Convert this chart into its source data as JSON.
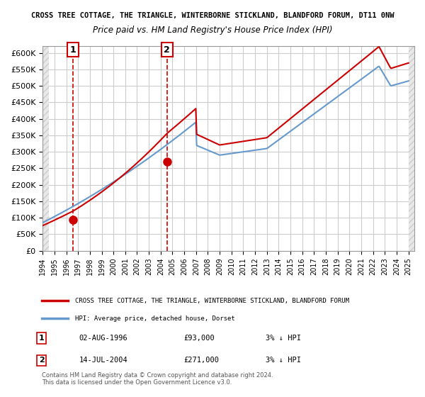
{
  "title_line1": "CROSS TREE COTTAGE, THE TRIANGLE, WINTERBORNE STICKLAND, BLANDFORD FORUM, DT11 0NW",
  "title_line2": "Price paid vs. HM Land Registry's House Price Index (HPI)",
  "legend_line1": "CROSS TREE COTTAGE, THE TRIANGLE, WINTERBORNE STICKLAND, BLANDFORD FORUM",
  "legend_line2": "HPI: Average price, detached house, Dorset",
  "annotation1_label": "1",
  "annotation1_date": "02-AUG-1996",
  "annotation1_price": "£93,000",
  "annotation1_hpi": "3% ↓ HPI",
  "annotation2_label": "2",
  "annotation2_date": "14-JUL-2004",
  "annotation2_price": "£271,000",
  "annotation2_hpi": "3% ↓ HPI",
  "footnote": "Contains HM Land Registry data © Crown copyright and database right 2024.\nThis data is licensed under the Open Government Licence v3.0.",
  "ylim": [
    0,
    620000
  ],
  "yticks": [
    0,
    50000,
    100000,
    150000,
    200000,
    250000,
    300000,
    350000,
    400000,
    450000,
    500000,
    550000,
    600000
  ],
  "price_color": "#cc0000",
  "hpi_color": "#6699cc",
  "hatch_color": "#cccccc",
  "grid_color": "#cccccc",
  "background_color": "#ffffff",
  "plot_bg_color": "#ffffff",
  "annotation_box_color": "#cc0000",
  "sale1_x": 1996.58,
  "sale1_y": 93000,
  "sale2_x": 2004.53,
  "sale2_y": 271000,
  "xmin": 1994,
  "xmax": 2025.5
}
